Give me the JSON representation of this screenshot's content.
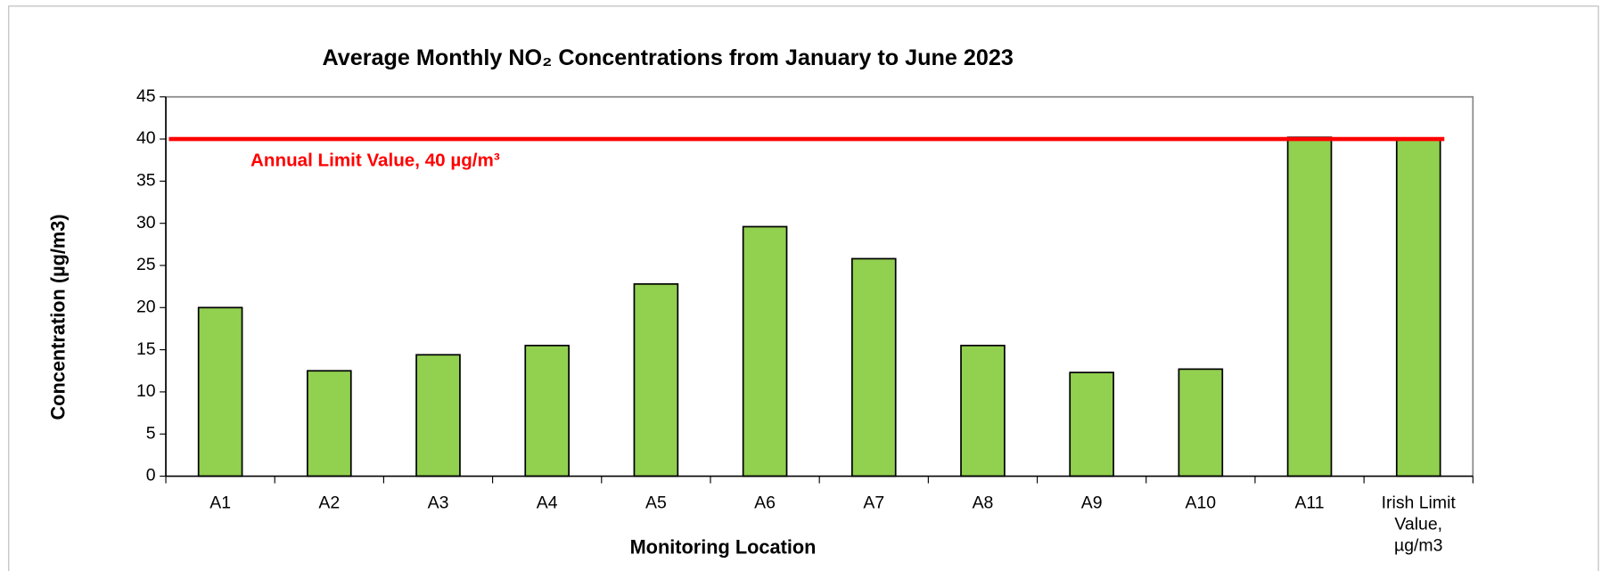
{
  "chart_data": {
    "type": "bar",
    "title": "Average Monthly NO₂ Concentrations from January to June 2023",
    "x_label": "Monitoring Location",
    "y_label": "Concentration (µg/m3)",
    "categories": [
      "A1",
      "A2",
      "A3",
      "A4",
      "A5",
      "A6",
      "A7",
      "A8",
      "A9",
      "A10",
      "A11",
      "Irish Limit Value, µg/m3"
    ],
    "values": [
      20,
      12.5,
      14.4,
      15.5,
      22.8,
      29.6,
      25.8,
      15.5,
      12.3,
      12.7,
      40.2,
      40
    ],
    "color": "#92d050",
    "ylim": [
      0,
      45
    ],
    "yticks": [
      0,
      5,
      10,
      15,
      20,
      25,
      30,
      35,
      40,
      45
    ],
    "grid": false,
    "reference_line": {
      "value": 40,
      "label": "Annual Limit Value, 40 µg/m³",
      "color": "#ff0000"
    }
  }
}
